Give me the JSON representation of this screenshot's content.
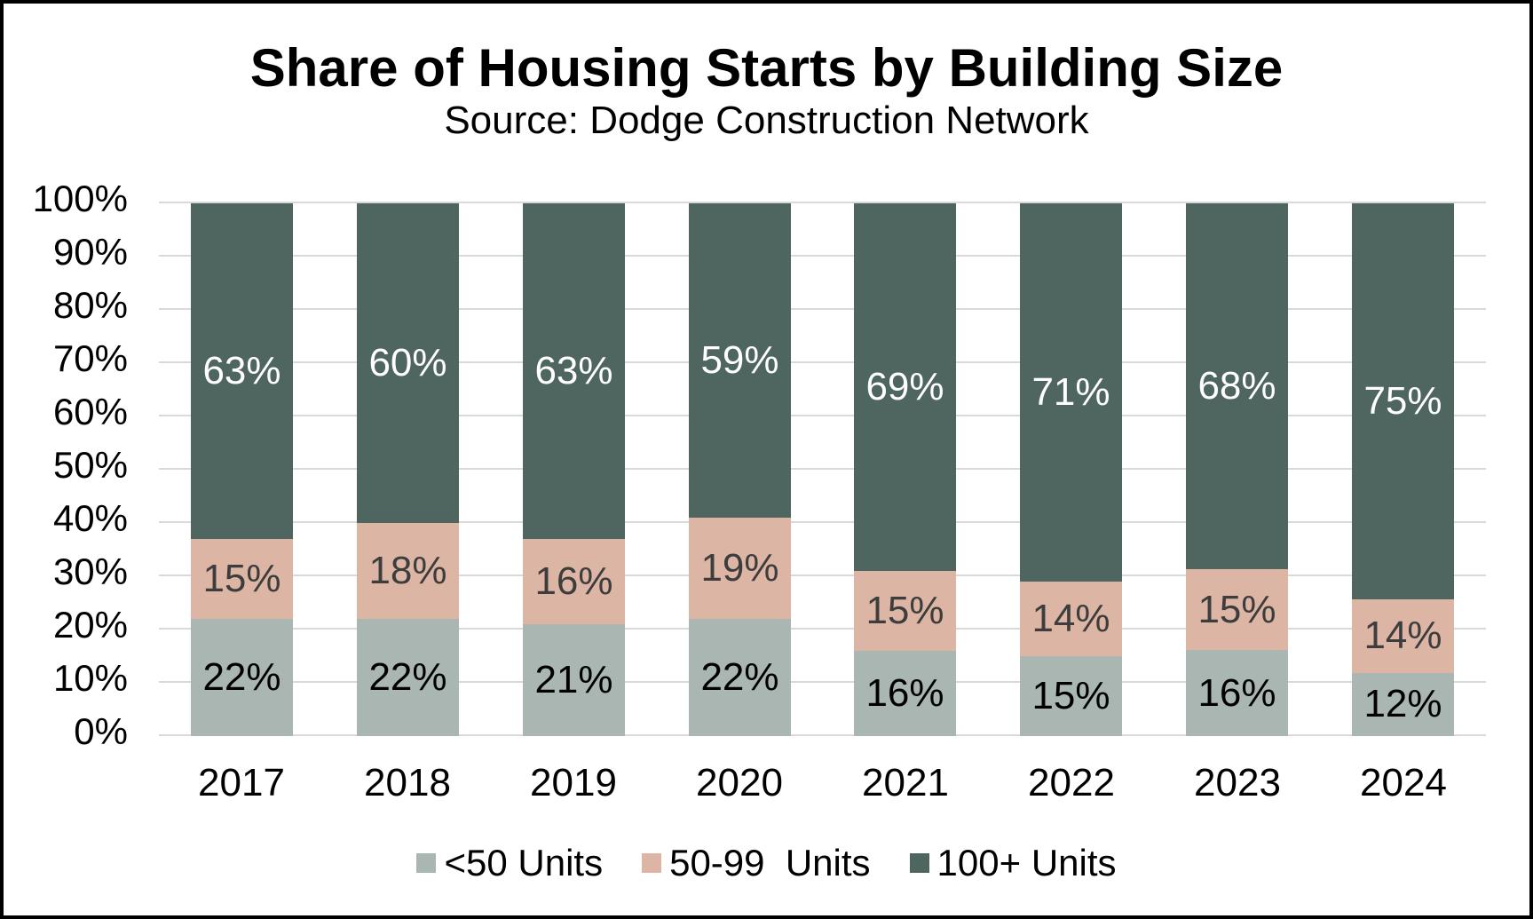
{
  "chart_data": {
    "type": "bar",
    "stacked": true,
    "percent_stacked": true,
    "orientation": "vertical",
    "title": "Share of Housing Starts by Building Size",
    "subtitle": "Source: Dodge Construction Network",
    "categories": [
      "2017",
      "2018",
      "2019",
      "2020",
      "2021",
      "2022",
      "2023",
      "2024"
    ],
    "series": [
      {
        "name": "<50 Units",
        "color": "#a9b6b2",
        "label_color": "#000000",
        "values": [
          22,
          22,
          21,
          22,
          16,
          15,
          16,
          12
        ],
        "labels": [
          "22%",
          "22%",
          "21%",
          "22%",
          "16%",
          "15%",
          "16%",
          "12%"
        ]
      },
      {
        "name": "50-99  Units",
        "color": "#dcb5a4",
        "label_color": "#3d3d3d",
        "values": [
          15,
          18,
          16,
          19,
          15,
          14,
          15,
          14
        ],
        "labels": [
          "15%",
          "18%",
          "16%",
          "19%",
          "15%",
          "14%",
          "15%",
          "14%"
        ]
      },
      {
        "name": "100+ Units",
        "color": "#4f655f",
        "label_color": "#ffffff",
        "values": [
          63,
          60,
          63,
          59,
          69,
          71,
          68,
          75
        ],
        "labels": [
          "63%",
          "60%",
          "63%",
          "59%",
          "69%",
          "71%",
          "68%",
          "75%"
        ]
      }
    ],
    "y_axis": {
      "min": 0,
      "max": 100,
      "ticks": [
        {
          "value": 100,
          "label": "100%"
        },
        {
          "value": 90,
          "label": "90%"
        },
        {
          "value": 80,
          "label": "80%"
        },
        {
          "value": 70,
          "label": "70%"
        },
        {
          "value": 60,
          "label": "60%"
        },
        {
          "value": 50,
          "label": "50%"
        },
        {
          "value": 40,
          "label": "40%"
        },
        {
          "value": 30,
          "label": "30%"
        },
        {
          "value": 20,
          "label": "20%"
        },
        {
          "value": 10,
          "label": "10%"
        },
        {
          "value": 0,
          "label": "0%"
        }
      ]
    },
    "grid": true,
    "gridline_color": "#d9d9d9",
    "legend_position": "bottom"
  }
}
